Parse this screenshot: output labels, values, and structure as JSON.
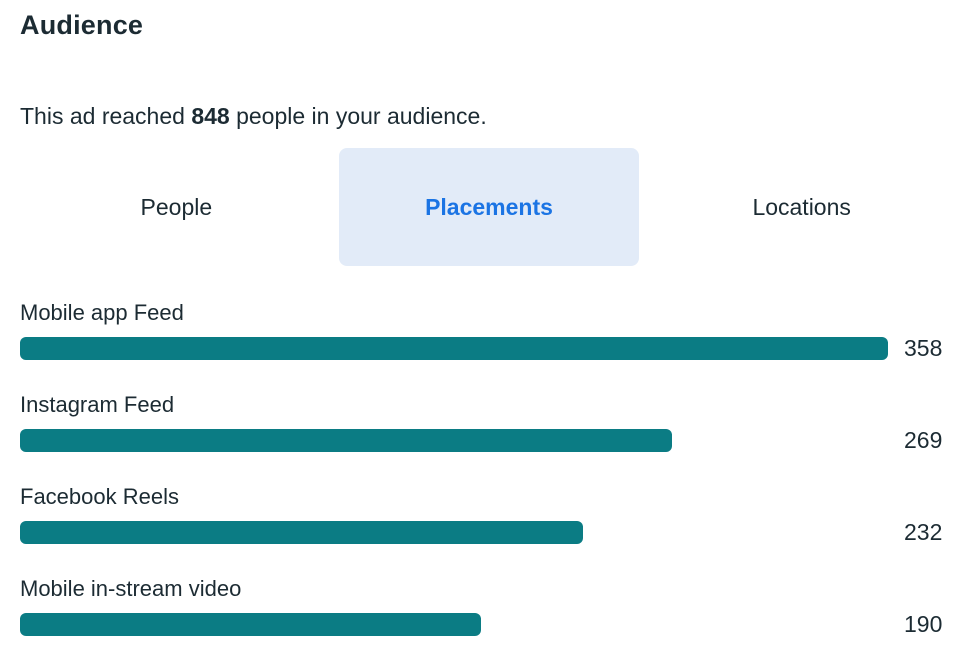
{
  "header": {
    "title": "Audience"
  },
  "summary": {
    "prefix": "This ad reached ",
    "value": "848",
    "suffix": " people in your audience."
  },
  "tabs": [
    {
      "label": "People",
      "active": false
    },
    {
      "label": "Placements",
      "active": true
    },
    {
      "label": "Locations",
      "active": false
    }
  ],
  "chart_data": {
    "type": "bar",
    "orientation": "horizontal",
    "title": "Placements",
    "categories": [
      "Mobile app Feed",
      "Instagram Feed",
      "Facebook Reels",
      "Mobile in-stream video"
    ],
    "values": [
      358,
      269,
      232,
      190
    ],
    "value_labels": [
      "358",
      "269",
      "232",
      "190"
    ],
    "max_value": 358,
    "xlabel": "",
    "ylabel": "",
    "grid": false,
    "legend": false,
    "bar_color": "#0b7c84"
  },
  "colors": {
    "text_dark": "#1c2b33",
    "accent_blue": "#1b74e4",
    "tab_active_bg": "#e2ebf8",
    "bar_teal": "#0b7c84"
  }
}
